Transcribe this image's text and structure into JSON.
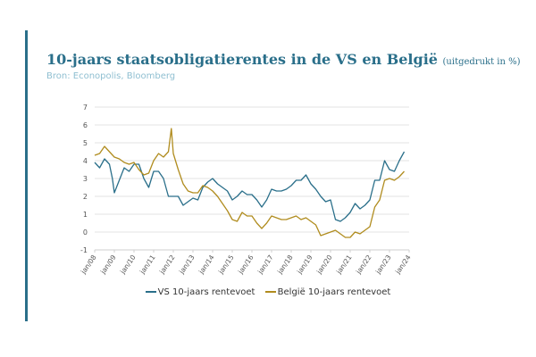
{
  "header": {
    "title": "10-jaars staatsobligatierentes in de VS en België",
    "unit": "(uitgedrukt in %)",
    "source": "Bron: Econopolis, Bloomberg"
  },
  "colors": {
    "accent": "#2a6f8a",
    "source_text": "#8fbfd1",
    "us_series": "#2a6f8a",
    "be_series": "#b08c1e"
  },
  "chart_data": {
    "type": "line",
    "title": "10-jaars staatsobligatierentes in de VS en België",
    "xlabel": "",
    "ylabel": "",
    "ylim": [
      -1,
      7
    ],
    "yticks": [
      "-1",
      "0",
      "1",
      "2",
      "3",
      "4",
      "5",
      "6",
      "7"
    ],
    "xlim": [
      2008.0,
      2024.0
    ],
    "xticks": [
      "jan/08",
      "jan/09",
      "jan/10",
      "jan/11",
      "jan/12",
      "jan/13",
      "jan/14",
      "jan/15",
      "jan/16",
      "jan/17",
      "jan/18",
      "jan/19",
      "jan/20",
      "jan/21",
      "jan/22",
      "jan/23",
      "jan/24"
    ],
    "grid": true,
    "legend_position": "bottom",
    "series": [
      {
        "name": "VS 10-jaars rentevoet",
        "color": "#2a6f8a",
        "points": [
          [
            2008.0,
            3.9
          ],
          [
            2008.25,
            3.6
          ],
          [
            2008.5,
            4.1
          ],
          [
            2008.75,
            3.8
          ],
          [
            2008.9,
            3.0
          ],
          [
            2009.0,
            2.2
          ],
          [
            2009.25,
            2.9
          ],
          [
            2009.5,
            3.6
          ],
          [
            2009.75,
            3.4
          ],
          [
            2010.0,
            3.8
          ],
          [
            2010.25,
            3.8
          ],
          [
            2010.5,
            3.0
          ],
          [
            2010.75,
            2.5
          ],
          [
            2011.0,
            3.4
          ],
          [
            2011.25,
            3.4
          ],
          [
            2011.5,
            3.0
          ],
          [
            2011.75,
            2.0
          ],
          [
            2012.0,
            2.0
          ],
          [
            2012.25,
            2.0
          ],
          [
            2012.5,
            1.5
          ],
          [
            2012.75,
            1.7
          ],
          [
            2013.0,
            1.9
          ],
          [
            2013.25,
            1.8
          ],
          [
            2013.5,
            2.5
          ],
          [
            2013.75,
            2.8
          ],
          [
            2014.0,
            3.0
          ],
          [
            2014.25,
            2.7
          ],
          [
            2014.5,
            2.5
          ],
          [
            2014.75,
            2.3
          ],
          [
            2015.0,
            1.8
          ],
          [
            2015.25,
            2.0
          ],
          [
            2015.5,
            2.3
          ],
          [
            2015.75,
            2.1
          ],
          [
            2016.0,
            2.1
          ],
          [
            2016.25,
            1.8
          ],
          [
            2016.5,
            1.4
          ],
          [
            2016.75,
            1.8
          ],
          [
            2017.0,
            2.4
          ],
          [
            2017.25,
            2.3
          ],
          [
            2017.5,
            2.3
          ],
          [
            2017.75,
            2.4
          ],
          [
            2018.0,
            2.6
          ],
          [
            2018.25,
            2.9
          ],
          [
            2018.5,
            2.9
          ],
          [
            2018.75,
            3.2
          ],
          [
            2019.0,
            2.7
          ],
          [
            2019.25,
            2.4
          ],
          [
            2019.5,
            2.0
          ],
          [
            2019.75,
            1.7
          ],
          [
            2020.0,
            1.8
          ],
          [
            2020.25,
            0.7
          ],
          [
            2020.5,
            0.6
          ],
          [
            2020.75,
            0.8
          ],
          [
            2021.0,
            1.1
          ],
          [
            2021.25,
            1.6
          ],
          [
            2021.5,
            1.3
          ],
          [
            2021.75,
            1.5
          ],
          [
            2022.0,
            1.8
          ],
          [
            2022.25,
            2.9
          ],
          [
            2022.5,
            2.9
          ],
          [
            2022.75,
            4.0
          ],
          [
            2023.0,
            3.5
          ],
          [
            2023.25,
            3.4
          ],
          [
            2023.5,
            4.0
          ],
          [
            2023.75,
            4.5
          ]
        ]
      },
      {
        "name": "België 10-jaars rentevoet",
        "color": "#b08c1e",
        "points": [
          [
            2008.0,
            4.3
          ],
          [
            2008.25,
            4.4
          ],
          [
            2008.5,
            4.8
          ],
          [
            2008.75,
            4.5
          ],
          [
            2009.0,
            4.2
          ],
          [
            2009.25,
            4.1
          ],
          [
            2009.5,
            3.9
          ],
          [
            2009.75,
            3.8
          ],
          [
            2010.0,
            3.9
          ],
          [
            2010.25,
            3.5
          ],
          [
            2010.5,
            3.2
          ],
          [
            2010.75,
            3.3
          ],
          [
            2011.0,
            4.0
          ],
          [
            2011.25,
            4.4
          ],
          [
            2011.5,
            4.2
          ],
          [
            2011.75,
            4.5
          ],
          [
            2011.9,
            5.8
          ],
          [
            2012.0,
            4.4
          ],
          [
            2012.25,
            3.5
          ],
          [
            2012.5,
            2.7
          ],
          [
            2012.75,
            2.3
          ],
          [
            2013.0,
            2.2
          ],
          [
            2013.25,
            2.2
          ],
          [
            2013.5,
            2.6
          ],
          [
            2013.75,
            2.5
          ],
          [
            2014.0,
            2.3
          ],
          [
            2014.25,
            2.0
          ],
          [
            2014.5,
            1.6
          ],
          [
            2014.75,
            1.2
          ],
          [
            2015.0,
            0.7
          ],
          [
            2015.25,
            0.6
          ],
          [
            2015.5,
            1.1
          ],
          [
            2015.75,
            0.9
          ],
          [
            2016.0,
            0.9
          ],
          [
            2016.25,
            0.5
          ],
          [
            2016.5,
            0.2
          ],
          [
            2016.75,
            0.5
          ],
          [
            2017.0,
            0.9
          ],
          [
            2017.25,
            0.8
          ],
          [
            2017.5,
            0.7
          ],
          [
            2017.75,
            0.7
          ],
          [
            2018.0,
            0.8
          ],
          [
            2018.25,
            0.9
          ],
          [
            2018.5,
            0.7
          ],
          [
            2018.75,
            0.8
          ],
          [
            2019.0,
            0.6
          ],
          [
            2019.25,
            0.4
          ],
          [
            2019.5,
            -0.2
          ],
          [
            2019.75,
            -0.1
          ],
          [
            2020.0,
            0.0
          ],
          [
            2020.25,
            0.1
          ],
          [
            2020.5,
            -0.1
          ],
          [
            2020.75,
            -0.3
          ],
          [
            2021.0,
            -0.3
          ],
          [
            2021.25,
            0.0
          ],
          [
            2021.5,
            -0.1
          ],
          [
            2021.75,
            0.1
          ],
          [
            2022.0,
            0.3
          ],
          [
            2022.25,
            1.4
          ],
          [
            2022.5,
            1.8
          ],
          [
            2022.75,
            2.9
          ],
          [
            2023.0,
            3.0
          ],
          [
            2023.25,
            2.9
          ],
          [
            2023.5,
            3.1
          ],
          [
            2023.75,
            3.4
          ]
        ]
      }
    ]
  }
}
